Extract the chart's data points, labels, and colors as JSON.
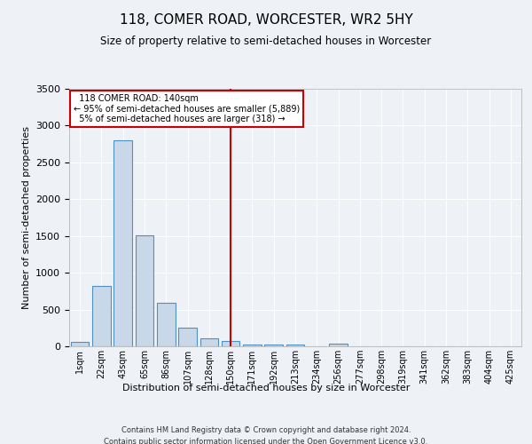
{
  "title": "118, COMER ROAD, WORCESTER, WR2 5HY",
  "subtitle": "Size of property relative to semi-detached houses in Worcester",
  "xlabel": "Distribution of semi-detached houses by size in Worcester",
  "ylabel": "Number of semi-detached properties",
  "categories": [
    "1sqm",
    "22sqm",
    "43sqm",
    "65sqm",
    "86sqm",
    "107sqm",
    "128sqm",
    "150sqm",
    "171sqm",
    "192sqm",
    "213sqm",
    "234sqm",
    "256sqm",
    "277sqm",
    "298sqm",
    "319sqm",
    "341sqm",
    "362sqm",
    "383sqm",
    "404sqm",
    "425sqm"
  ],
  "values": [
    60,
    820,
    2800,
    1510,
    590,
    250,
    110,
    70,
    30,
    30,
    30,
    0,
    35,
    0,
    0,
    0,
    0,
    0,
    0,
    0,
    0
  ],
  "bar_color": "#c8d8e8",
  "bar_edge_color": "#5090c0",
  "vline_x": 7.0,
  "property_label": "118 COMER ROAD: 140sqm",
  "smaller_pct": "95%",
  "smaller_count": "5,889",
  "larger_pct": "5%",
  "larger_count": "318",
  "annotation_box_color": "#cc0000",
  "vline_color": "#cc0000",
  "ylim": [
    0,
    3500
  ],
  "yticks": [
    0,
    500,
    1000,
    1500,
    2000,
    2500,
    3000,
    3500
  ],
  "background_color": "#eef2f7",
  "grid_color": "#ffffff",
  "footer_line1": "Contains HM Land Registry data © Crown copyright and database right 2024.",
  "footer_line2": "Contains public sector information licensed under the Open Government Licence v3.0."
}
